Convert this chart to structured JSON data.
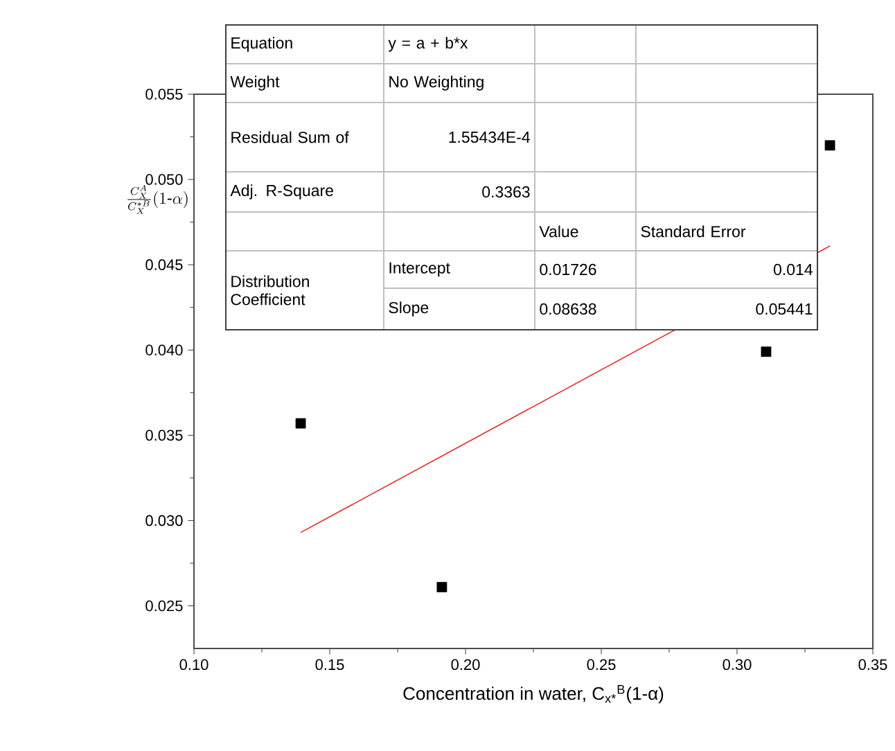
{
  "chart_data": {
    "type": "scatter",
    "xlabel": "Concentration in water, C$_{x*}$$^{B}$(1-α)",
    "ylabel": "\\frac{C_X^A}{C_X^{*B}}(1\\text{-}\\alpha)",
    "xlim": [
      0.1,
      0.35
    ],
    "ylim": [
      0.0225,
      0.055
    ],
    "xticks": [
      {
        "value": 0.1,
        "label": "0.10"
      },
      {
        "value": 0.15,
        "label": "0.15"
      },
      {
        "value": 0.2,
        "label": "0.20"
      },
      {
        "value": 0.25,
        "label": "0.25"
      },
      {
        "value": 0.3,
        "label": "0.30"
      },
      {
        "value": 0.35,
        "label": "0.35"
      }
    ],
    "yticks": [
      {
        "value": 0.025,
        "label": "0.025"
      },
      {
        "value": 0.03,
        "label": "0.030"
      },
      {
        "value": 0.035,
        "label": "0.035"
      },
      {
        "value": 0.04,
        "label": "0.040"
      },
      {
        "value": 0.045,
        "label": "0.045"
      },
      {
        "value": 0.05,
        "label": "0.050"
      },
      {
        "value": 0.055,
        "label": "0.055"
      }
    ],
    "marker": "square",
    "grid": false,
    "series": [
      {
        "color": "#000000",
        "x": [
          0.1393,
          0.1913,
          0.3107,
          0.3342
        ],
        "values": [
          0.0357,
          0.0261,
          0.0399,
          0.052
        ]
      },
      {
        "type": "line",
        "color": "#e03030",
        "marker": "none",
        "line_style": "solid",
        "x": [
          0.1393,
          0.3342
        ],
        "values": [
          0.0293,
          0.0461
        ]
      }
    ],
    "annotations": [
      "Equation",
      "y = a + b*x",
      "Weight",
      "No Weighting",
      "Residual Sum of",
      "1.55434E-4",
      "Adj. R-Square",
      "0.3363",
      "Value",
      "Standard Error",
      "Distribution Coefficient",
      "Intercept",
      "0.01726",
      "0.014",
      "Slope",
      "0.08638",
      "0.05441"
    ]
  }
}
